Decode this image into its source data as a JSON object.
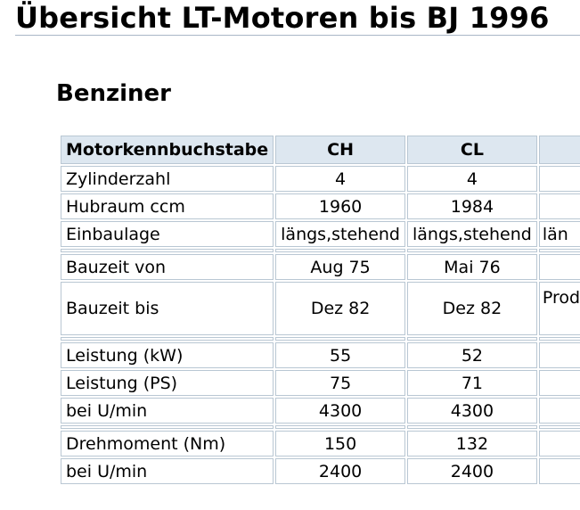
{
  "title": "Übersicht LT-Motoren bis BJ 1996",
  "subtitle": "Benziner",
  "table": {
    "header": [
      "Motorkennbuchstabe",
      "CH",
      "CL",
      ""
    ],
    "rows": [
      {
        "label": "Zylinderzahl",
        "values": [
          "4",
          "4",
          ""
        ]
      },
      {
        "label": "Hubraum ccm",
        "values": [
          "1960",
          "1984",
          ""
        ]
      },
      {
        "label": "Einbaulage",
        "values": [
          "längs,stehend",
          "längs,stehend",
          "län"
        ]
      },
      {
        "label": "Bauzeit von",
        "values": [
          "Aug 75",
          "Mai 76",
          ""
        ]
      },
      {
        "label": "Bauzeit bis",
        "values": [
          "Dez 82",
          "Dez 82",
          "Prod"
        ]
      },
      {
        "label": "Leistung (kW)",
        "values": [
          "55",
          "52",
          ""
        ]
      },
      {
        "label": "Leistung (PS)",
        "values": [
          "75",
          "71",
          ""
        ]
      },
      {
        "label": "bei U/min",
        "values": [
          "4300",
          "4300",
          ""
        ]
      },
      {
        "label": "Drehmoment (Nm)",
        "values": [
          "150",
          "132",
          ""
        ]
      },
      {
        "label": "bei U/min",
        "values": [
          "2400",
          "2400",
          ""
        ]
      }
    ]
  }
}
